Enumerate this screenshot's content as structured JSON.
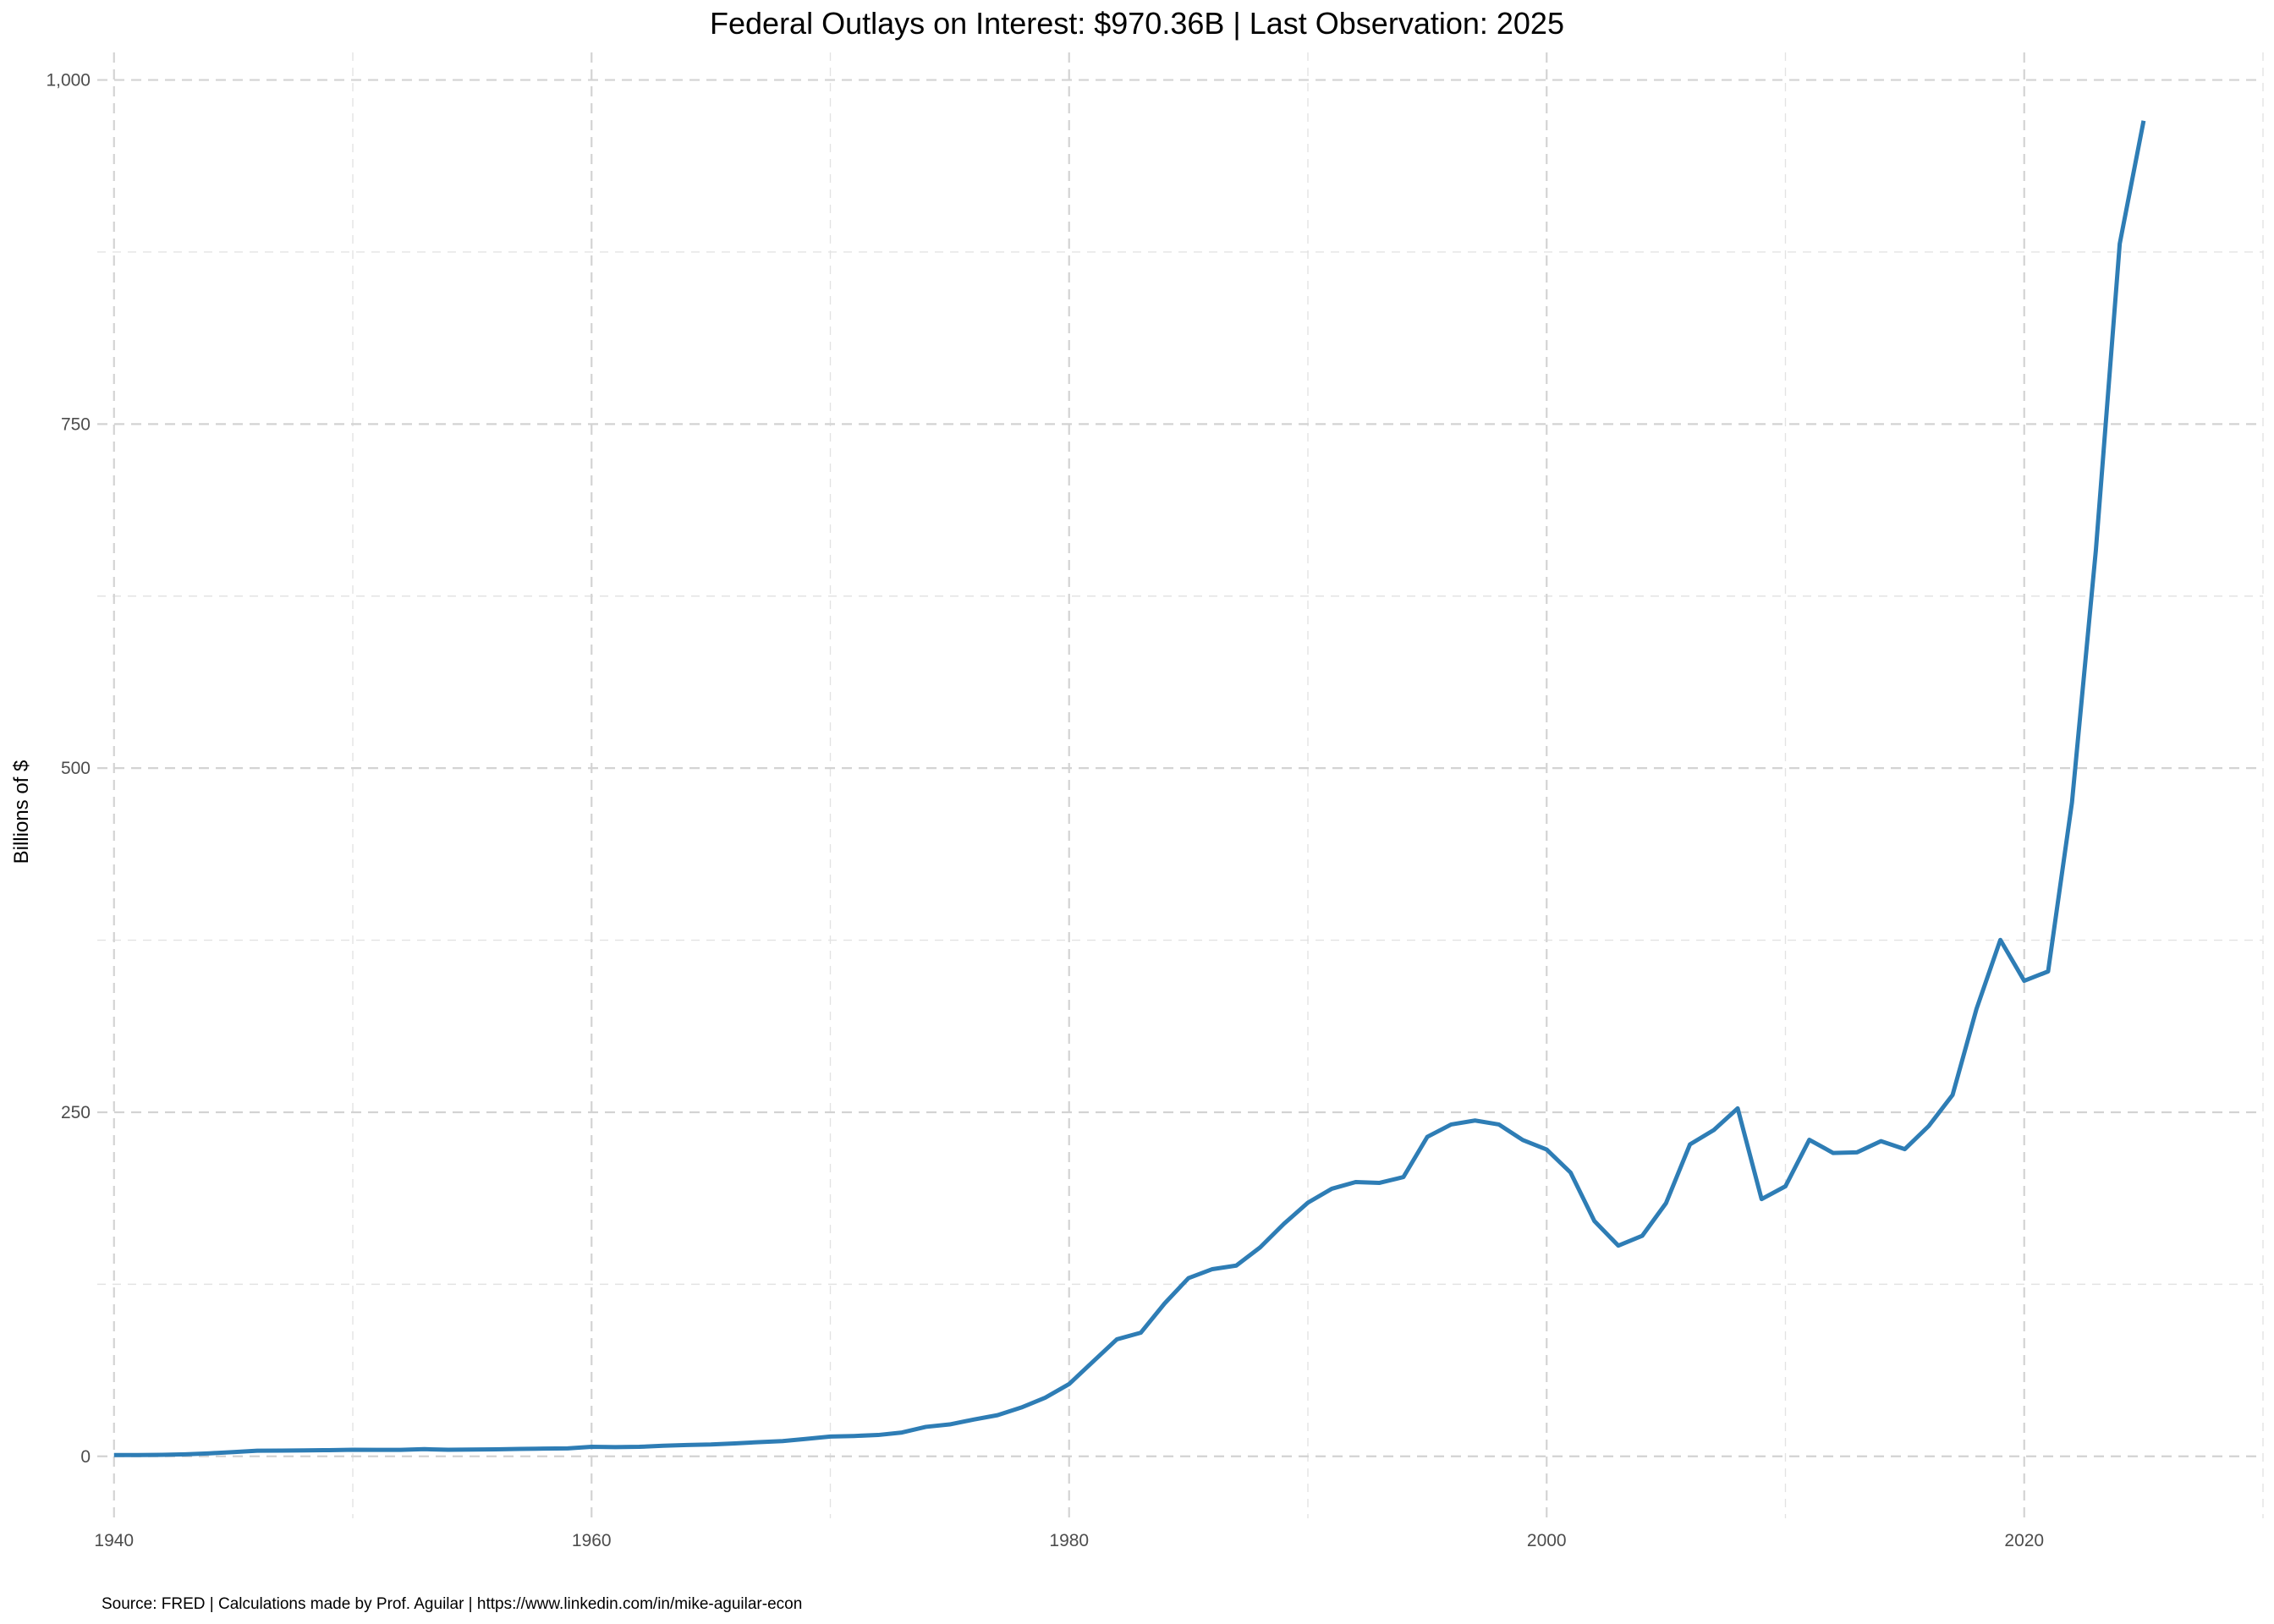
{
  "chart_data": {
    "type": "line",
    "title": "Federal Outlays on Interest: $970.36B | Last Observation: 2025",
    "xlabel": "",
    "ylabel": "Billions of $",
    "caption": "Source: FRED | Calculations made by Prof. Aguilar | https://www.linkedin.com/in/mike-aguilar-econ",
    "xlim": [
      1939.3,
      2030.0
    ],
    "ylim": [
      -45,
      1020
    ],
    "x_ticks": [
      1940,
      1960,
      1980,
      2000,
      2020
    ],
    "x_tick_labels": [
      "1940",
      "1960",
      "1980",
      "2000",
      "2020"
    ],
    "x_minor_ticks": [
      1950,
      1970,
      1990,
      2010,
      2030
    ],
    "y_ticks": [
      0,
      250,
      500,
      750,
      1000
    ],
    "y_tick_labels": [
      "0",
      "250",
      "500",
      "750",
      "1,000"
    ],
    "y_minor_ticks": [
      125,
      375,
      625,
      875
    ],
    "grid": true,
    "series": [
      {
        "name": "Federal Outlays on Interest",
        "color": "#2e7db5",
        "x": [
          1940,
          1941,
          1942,
          1943,
          1944,
          1945,
          1946,
          1947,
          1948,
          1949,
          1950,
          1951,
          1952,
          1953,
          1954,
          1955,
          1956,
          1957,
          1958,
          1959,
          1960,
          1961,
          1962,
          1963,
          1964,
          1965,
          1966,
          1967,
          1968,
          1969,
          1970,
          1971,
          1972,
          1973,
          1974,
          1975,
          1976,
          1977,
          1978,
          1979,
          1980,
          1981,
          1982,
          1983,
          1984,
          1985,
          1986,
          1987,
          1988,
          1989,
          1990,
          1991,
          1992,
          1993,
          1994,
          1995,
          1996,
          1997,
          1998,
          1999,
          2000,
          2001,
          2002,
          2003,
          2004,
          2005,
          2006,
          2007,
          2008,
          2009,
          2010,
          2011,
          2012,
          2013,
          2014,
          2015,
          2016,
          2017,
          2018,
          2019,
          2020,
          2021,
          2022,
          2023,
          2024,
          2025
        ],
        "y": [
          0.9,
          0.9,
          1.1,
          1.5,
          2.2,
          3.1,
          4.1,
          4.2,
          4.3,
          4.5,
          4.8,
          4.7,
          4.7,
          5.2,
          4.8,
          4.9,
          5.1,
          5.4,
          5.6,
          5.8,
          6.9,
          6.7,
          6.9,
          7.7,
          8.2,
          8.6,
          9.4,
          10.3,
          11.1,
          12.7,
          14.4,
          14.8,
          15.5,
          17.3,
          21.4,
          23.2,
          26.7,
          29.9,
          35.5,
          42.6,
          52.5,
          68.8,
          85.0,
          89.8,
          111.1,
          129.5,
          136.0,
          138.6,
          151.8,
          169.0,
          184.3,
          194.4,
          199.3,
          198.7,
          202.9,
          232.1,
          241.1,
          244.0,
          241.1,
          229.8,
          222.9,
          206.2,
          170.9,
          153.1,
          160.2,
          184.0,
          226.6,
          237.1,
          252.8,
          186.9,
          196.2,
          230.0,
          220.4,
          220.9,
          229.0,
          223.2,
          240.0,
          262.6,
          325.0,
          375.2,
          345.5,
          352.3,
          475.1,
          658.3,
          881.0,
          970.36
        ]
      }
    ]
  }
}
